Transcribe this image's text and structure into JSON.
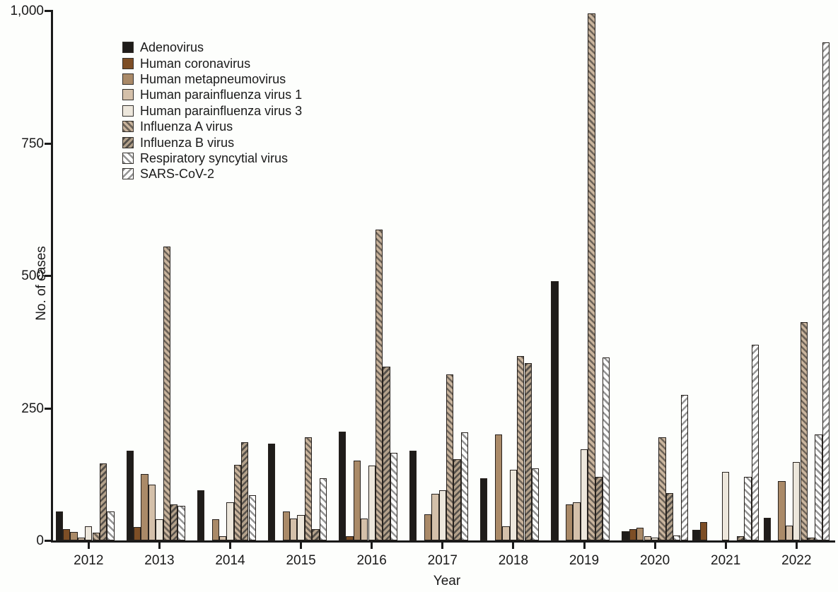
{
  "chart_data": {
    "type": "bar",
    "title": "",
    "xlabel": "Year",
    "ylabel": "No. of cases",
    "ylim": [
      0,
      1000
    ],
    "yticks": [
      0,
      250,
      500,
      750,
      1000
    ],
    "ytick_labels": [
      "0",
      "250",
      "500",
      "750",
      "1,000"
    ],
    "categories": [
      "2012",
      "2013",
      "2014",
      "2015",
      "2016",
      "2017",
      "2018",
      "2019",
      "2020",
      "2021",
      "2022"
    ],
    "grid": false,
    "legend_position": "inside-top-left",
    "series": [
      {
        "name": "Adenovirus",
        "style": "solid",
        "color": "#1f1c1a",
        "values": [
          55,
          170,
          95,
          183,
          205,
          170,
          118,
          490,
          18,
          20,
          43
        ]
      },
      {
        "name": "Human coronavirus",
        "style": "solid",
        "color": "#7d4e26",
        "values": [
          22,
          25,
          0,
          0,
          8,
          0,
          0,
          0,
          22,
          35,
          0
        ]
      },
      {
        "name": "Human metapneumovirus",
        "style": "solid",
        "color": "#aa8a68",
        "values": [
          16,
          125,
          40,
          55,
          151,
          50,
          200,
          68,
          24,
          0,
          112
        ]
      },
      {
        "name": "Human parainfluenza virus 1",
        "style": "solid",
        "color": "#d4c0aa",
        "values": [
          5,
          105,
          8,
          41,
          42,
          88,
          27,
          72,
          8,
          0,
          28
        ]
      },
      {
        "name": "Human parainfluenza virus 3",
        "style": "solid",
        "color": "#ede7dc",
        "values": [
          27,
          40,
          72,
          48,
          141,
          95,
          134,
          172,
          5,
          130,
          148
        ]
      },
      {
        "name": "Influenza A virus",
        "style": "hatch-forward",
        "color": "#c9b49d",
        "stripe": "#6e6459",
        "values": [
          15,
          555,
          143,
          195,
          587,
          313,
          348,
          995,
          195,
          0,
          412
        ]
      },
      {
        "name": "Influenza B virus",
        "style": "hatch-back",
        "color": "#b3a18b",
        "stripe": "#55504a",
        "values": [
          145,
          68,
          185,
          21,
          328,
          153,
          335,
          120,
          90,
          8,
          5
        ]
      },
      {
        "name": "Respiratory syncytial virus",
        "style": "hatch-forward",
        "color": "#ffffff",
        "stripe": "#949494",
        "values": [
          55,
          65,
          85,
          117,
          165,
          204,
          136,
          345,
          10,
          120,
          200
        ]
      },
      {
        "name": "SARS-CoV-2",
        "style": "hatch-back",
        "color": "#ffffff",
        "stripe": "#949494",
        "values": [
          0,
          0,
          0,
          0,
          0,
          0,
          0,
          0,
          275,
          370,
          940
        ]
      }
    ]
  }
}
